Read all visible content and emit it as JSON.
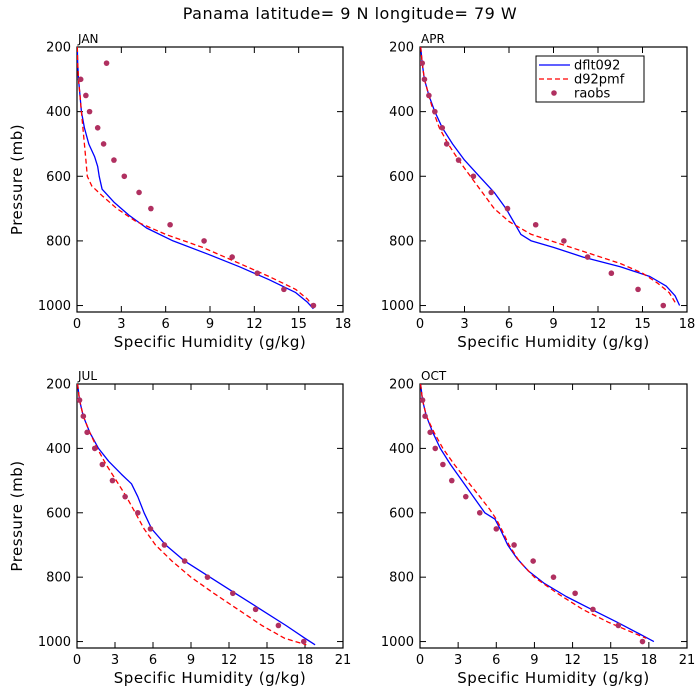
{
  "title": "Panama  latitude= 9 N longitude= 79 W",
  "colors": {
    "dflt092": "#0000ff",
    "d92pmf": "#ff0000",
    "raobs": "#b03060"
  },
  "legend": {
    "placement": "top-right of APR panel",
    "entries": [
      {
        "label": "dflt092",
        "style": "solid"
      },
      {
        "label": "d92pmf",
        "style": "dashed"
      },
      {
        "label": "raobs",
        "style": "markers"
      }
    ]
  },
  "chart_data": [
    {
      "type": "line",
      "panel": "JAN",
      "xlabel": "Specific Humidity (g/kg)",
      "ylabel": "Pressure (mb)",
      "xlim": [
        0,
        18
      ],
      "ylim": [
        1020,
        200
      ],
      "xticks": [
        0,
        3,
        6,
        9,
        12,
        15,
        18
      ],
      "yticks": [
        200,
        400,
        600,
        800,
        1000
      ],
      "series": [
        {
          "name": "dflt092",
          "style": "solid",
          "x": [
            0.02,
            0.05,
            0.1,
            0.2,
            0.3,
            0.5,
            0.8,
            1.2,
            1.4,
            1.5,
            1.7,
            2.5,
            3.5,
            4.7,
            6.5,
            8.8,
            11.0,
            13.0,
            14.8,
            15.6,
            16.0
          ],
          "y": [
            200,
            250,
            300,
            350,
            400,
            450,
            500,
            540,
            570,
            600,
            640,
            680,
            720,
            760,
            800,
            840,
            880,
            920,
            960,
            990,
            1010
          ]
        },
        {
          "name": "d92pmf",
          "style": "dashed",
          "x": [
            0.02,
            0.05,
            0.1,
            0.2,
            0.3,
            0.4,
            0.5,
            0.6,
            0.7,
            1.0,
            1.7,
            2.7,
            4.0,
            6.0,
            8.5,
            11.0,
            13.0,
            14.8,
            15.6,
            16.1
          ],
          "y": [
            200,
            250,
            300,
            350,
            400,
            450,
            500,
            550,
            600,
            630,
            660,
            700,
            740,
            780,
            820,
            870,
            910,
            950,
            980,
            1010
          ]
        },
        {
          "name": "raobs",
          "style": "markers",
          "x": [
            2.0,
            0.25,
            0.6,
            0.85,
            1.4,
            1.8,
            2.5,
            3.2,
            4.2,
            5.0,
            6.3,
            8.6,
            10.5,
            12.2,
            14.0,
            16.0
          ],
          "y": [
            250,
            300,
            350,
            400,
            450,
            500,
            550,
            600,
            650,
            700,
            750,
            800,
            850,
            900,
            950,
            1000
          ]
        }
      ]
    },
    {
      "type": "line",
      "panel": "APR",
      "xlabel": "Specific Humidity (g/kg)",
      "ylabel": "Pressure (mb)",
      "xlim": [
        0,
        18
      ],
      "ylim": [
        1020,
        200
      ],
      "xticks": [
        0,
        3,
        6,
        9,
        12,
        15,
        18
      ],
      "yticks": [
        200,
        400,
        600,
        800,
        1000
      ],
      "series": [
        {
          "name": "dflt092",
          "style": "solid",
          "x": [
            0.05,
            0.15,
            0.3,
            0.6,
            1.0,
            1.5,
            2.2,
            3.0,
            4.0,
            5.0,
            5.8,
            6.3,
            6.8,
            7.5,
            9.0,
            11.0,
            13.5,
            15.5,
            16.6,
            17.2,
            17.5
          ],
          "y": [
            200,
            250,
            300,
            350,
            400,
            450,
            500,
            550,
            600,
            650,
            700,
            740,
            780,
            800,
            820,
            850,
            880,
            910,
            940,
            970,
            1000
          ]
        },
        {
          "name": "d92pmf",
          "style": "dashed",
          "x": [
            0.05,
            0.15,
            0.3,
            0.6,
            0.9,
            1.3,
            1.9,
            2.6,
            3.4,
            4.2,
            5.0,
            6.0,
            7.5,
            9.5,
            11.5,
            13.5,
            15.0,
            16.0,
            16.8,
            17.2
          ],
          "y": [
            200,
            250,
            300,
            350,
            400,
            450,
            500,
            550,
            600,
            650,
            700,
            740,
            780,
            810,
            840,
            870,
            900,
            930,
            960,
            990
          ]
        },
        {
          "name": "raobs",
          "style": "markers",
          "x": [
            0.15,
            0.3,
            0.6,
            1.0,
            1.5,
            1.8,
            2.6,
            3.6,
            4.8,
            5.9,
            7.8,
            9.7,
            11.3,
            12.9,
            14.7,
            16.4
          ],
          "y": [
            250,
            300,
            350,
            400,
            450,
            500,
            550,
            600,
            650,
            700,
            750,
            800,
            850,
            900,
            950,
            1000
          ]
        }
      ]
    },
    {
      "type": "line",
      "panel": "JUL",
      "xlabel": "Specific Humidity (g/kg)",
      "ylabel": "Pressure (mb)",
      "xlim": [
        0,
        21
      ],
      "ylim": [
        1020,
        200
      ],
      "xticks": [
        0,
        3,
        6,
        9,
        12,
        15,
        18,
        21
      ],
      "yticks": [
        200,
        400,
        600,
        800,
        1000
      ],
      "series": [
        {
          "name": "dflt092",
          "style": "solid",
          "x": [
            0.05,
            0.2,
            0.5,
            1.0,
            1.7,
            2.5,
            3.5,
            4.3,
            4.8,
            5.3,
            5.9,
            7.0,
            8.5,
            10.5,
            12.5,
            14.5,
            16.5,
            18.0,
            18.8
          ],
          "y": [
            200,
            250,
            300,
            350,
            400,
            440,
            480,
            510,
            550,
            600,
            650,
            700,
            750,
            800,
            850,
            900,
            950,
            990,
            1010
          ]
        },
        {
          "name": "d92pmf",
          "style": "dashed",
          "x": [
            0.05,
            0.2,
            0.5,
            1.0,
            1.6,
            2.3,
            3.1,
            3.9,
            4.6,
            5.3,
            6.2,
            7.5,
            9.0,
            10.8,
            12.7,
            14.6,
            16.4,
            18.1
          ],
          "y": [
            200,
            250,
            300,
            350,
            400,
            450,
            500,
            550,
            600,
            650,
            700,
            750,
            800,
            850,
            900,
            950,
            990,
            1010
          ]
        },
        {
          "name": "raobs",
          "style": "markers",
          "x": [
            0.2,
            0.5,
            0.8,
            1.4,
            2.0,
            2.8,
            3.8,
            4.8,
            5.8,
            6.9,
            8.5,
            10.3,
            12.3,
            14.1,
            15.9,
            17.9
          ],
          "y": [
            250,
            300,
            350,
            400,
            450,
            500,
            550,
            600,
            650,
            700,
            750,
            800,
            850,
            900,
            950,
            1000
          ]
        }
      ]
    },
    {
      "type": "line",
      "panel": "OCT",
      "xlabel": "Specific Humidity (g/kg)",
      "ylabel": "Pressure (mb)",
      "xlim": [
        0,
        21
      ],
      "ylim": [
        1020,
        200
      ],
      "xticks": [
        0,
        3,
        6,
        9,
        12,
        15,
        18,
        21
      ],
      "yticks": [
        200,
        400,
        600,
        800,
        1000
      ],
      "series": [
        {
          "name": "dflt092",
          "style": "solid",
          "x": [
            0.05,
            0.2,
            0.5,
            1.0,
            1.6,
            2.4,
            3.3,
            4.2,
            5.1,
            5.9,
            6.3,
            6.9,
            7.6,
            8.5,
            9.8,
            11.5,
            13.5,
            15.5,
            17.2,
            18.4
          ],
          "y": [
            200,
            250,
            300,
            350,
            400,
            450,
            500,
            550,
            600,
            620,
            650,
            700,
            740,
            780,
            820,
            860,
            900,
            940,
            975,
            1000
          ]
        },
        {
          "name": "d92pmf",
          "style": "dashed",
          "x": [
            0.05,
            0.2,
            0.5,
            1.1,
            1.8,
            2.7,
            3.7,
            4.7,
            5.5,
            6.0,
            6.4,
            7.0,
            7.8,
            9.0,
            10.8,
            12.8,
            14.8,
            16.6,
            17.8
          ],
          "y": [
            200,
            250,
            300,
            350,
            400,
            450,
            500,
            550,
            590,
            620,
            650,
            700,
            750,
            800,
            850,
            900,
            940,
            970,
            990
          ]
        },
        {
          "name": "raobs",
          "style": "markers",
          "x": [
            0.2,
            0.4,
            0.8,
            1.2,
            1.8,
            2.5,
            3.6,
            4.7,
            6.0,
            7.4,
            8.9,
            10.5,
            12.2,
            13.6,
            15.6,
            17.5
          ],
          "y": [
            250,
            300,
            350,
            400,
            450,
            500,
            550,
            600,
            650,
            700,
            750,
            800,
            850,
            900,
            950,
            1000
          ]
        }
      ]
    }
  ],
  "panel_titles": [
    "JAN",
    "APR",
    "JUL",
    "OCT"
  ]
}
